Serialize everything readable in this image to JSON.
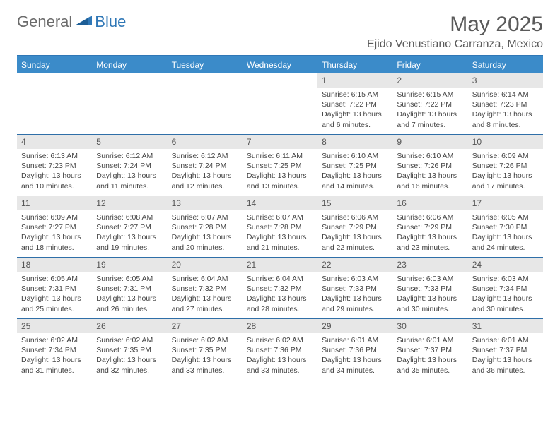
{
  "brand": {
    "part1": "General",
    "part2": "Blue"
  },
  "title": "May 2025",
  "location": "Ejido Venustiano Carranza, Mexico",
  "colors": {
    "header_bar": "#3b8bc9",
    "border": "#2f6fa8",
    "daynum_bg": "#e7e7e7",
    "text": "#444444",
    "title_text": "#5a5a5a",
    "brand_gray": "#6b6b6b",
    "brand_blue": "#2f77b6"
  },
  "dow": [
    "Sunday",
    "Monday",
    "Tuesday",
    "Wednesday",
    "Thursday",
    "Friday",
    "Saturday"
  ],
  "weeks": [
    [
      {
        "n": "",
        "sr": "",
        "ss": "",
        "dl": ""
      },
      {
        "n": "",
        "sr": "",
        "ss": "",
        "dl": ""
      },
      {
        "n": "",
        "sr": "",
        "ss": "",
        "dl": ""
      },
      {
        "n": "",
        "sr": "",
        "ss": "",
        "dl": ""
      },
      {
        "n": "1",
        "sr": "6:15 AM",
        "ss": "7:22 PM",
        "dl": "13 hours and 6 minutes."
      },
      {
        "n": "2",
        "sr": "6:15 AM",
        "ss": "7:22 PM",
        "dl": "13 hours and 7 minutes."
      },
      {
        "n": "3",
        "sr": "6:14 AM",
        "ss": "7:23 PM",
        "dl": "13 hours and 8 minutes."
      }
    ],
    [
      {
        "n": "4",
        "sr": "6:13 AM",
        "ss": "7:23 PM",
        "dl": "13 hours and 10 minutes."
      },
      {
        "n": "5",
        "sr": "6:12 AM",
        "ss": "7:24 PM",
        "dl": "13 hours and 11 minutes."
      },
      {
        "n": "6",
        "sr": "6:12 AM",
        "ss": "7:24 PM",
        "dl": "13 hours and 12 minutes."
      },
      {
        "n": "7",
        "sr": "6:11 AM",
        "ss": "7:25 PM",
        "dl": "13 hours and 13 minutes."
      },
      {
        "n": "8",
        "sr": "6:10 AM",
        "ss": "7:25 PM",
        "dl": "13 hours and 14 minutes."
      },
      {
        "n": "9",
        "sr": "6:10 AM",
        "ss": "7:26 PM",
        "dl": "13 hours and 16 minutes."
      },
      {
        "n": "10",
        "sr": "6:09 AM",
        "ss": "7:26 PM",
        "dl": "13 hours and 17 minutes."
      }
    ],
    [
      {
        "n": "11",
        "sr": "6:09 AM",
        "ss": "7:27 PM",
        "dl": "13 hours and 18 minutes."
      },
      {
        "n": "12",
        "sr": "6:08 AM",
        "ss": "7:27 PM",
        "dl": "13 hours and 19 minutes."
      },
      {
        "n": "13",
        "sr": "6:07 AM",
        "ss": "7:28 PM",
        "dl": "13 hours and 20 minutes."
      },
      {
        "n": "14",
        "sr": "6:07 AM",
        "ss": "7:28 PM",
        "dl": "13 hours and 21 minutes."
      },
      {
        "n": "15",
        "sr": "6:06 AM",
        "ss": "7:29 PM",
        "dl": "13 hours and 22 minutes."
      },
      {
        "n": "16",
        "sr": "6:06 AM",
        "ss": "7:29 PM",
        "dl": "13 hours and 23 minutes."
      },
      {
        "n": "17",
        "sr": "6:05 AM",
        "ss": "7:30 PM",
        "dl": "13 hours and 24 minutes."
      }
    ],
    [
      {
        "n": "18",
        "sr": "6:05 AM",
        "ss": "7:31 PM",
        "dl": "13 hours and 25 minutes."
      },
      {
        "n": "19",
        "sr": "6:05 AM",
        "ss": "7:31 PM",
        "dl": "13 hours and 26 minutes."
      },
      {
        "n": "20",
        "sr": "6:04 AM",
        "ss": "7:32 PM",
        "dl": "13 hours and 27 minutes."
      },
      {
        "n": "21",
        "sr": "6:04 AM",
        "ss": "7:32 PM",
        "dl": "13 hours and 28 minutes."
      },
      {
        "n": "22",
        "sr": "6:03 AM",
        "ss": "7:33 PM",
        "dl": "13 hours and 29 minutes."
      },
      {
        "n": "23",
        "sr": "6:03 AM",
        "ss": "7:33 PM",
        "dl": "13 hours and 30 minutes."
      },
      {
        "n": "24",
        "sr": "6:03 AM",
        "ss": "7:34 PM",
        "dl": "13 hours and 30 minutes."
      }
    ],
    [
      {
        "n": "25",
        "sr": "6:02 AM",
        "ss": "7:34 PM",
        "dl": "13 hours and 31 minutes."
      },
      {
        "n": "26",
        "sr": "6:02 AM",
        "ss": "7:35 PM",
        "dl": "13 hours and 32 minutes."
      },
      {
        "n": "27",
        "sr": "6:02 AM",
        "ss": "7:35 PM",
        "dl": "13 hours and 33 minutes."
      },
      {
        "n": "28",
        "sr": "6:02 AM",
        "ss": "7:36 PM",
        "dl": "13 hours and 33 minutes."
      },
      {
        "n": "29",
        "sr": "6:01 AM",
        "ss": "7:36 PM",
        "dl": "13 hours and 34 minutes."
      },
      {
        "n": "30",
        "sr": "6:01 AM",
        "ss": "7:37 PM",
        "dl": "13 hours and 35 minutes."
      },
      {
        "n": "31",
        "sr": "6:01 AM",
        "ss": "7:37 PM",
        "dl": "13 hours and 36 minutes."
      }
    ]
  ],
  "labels": {
    "sunrise": "Sunrise:",
    "sunset": "Sunset:",
    "daylight": "Daylight:"
  }
}
